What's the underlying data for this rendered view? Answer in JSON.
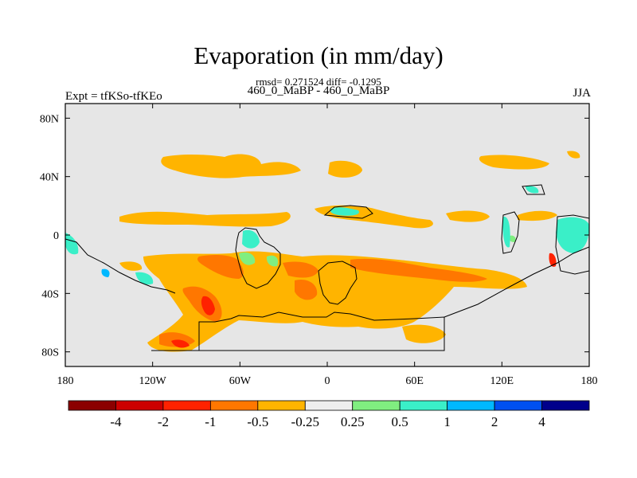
{
  "title": "Evaporation (in mm/day)",
  "stats": "rmsd= 0.271524 diff= -0.1295",
  "case": "460_0_MaBP - 460_0_MaBP",
  "experiment": "Expt = tfKSo-tfKEo",
  "season": "JJA",
  "map": {
    "lon_range": [
      -180,
      180
    ],
    "lat_range": [
      -90,
      90
    ],
    "lon_ticks": [
      {
        "value": -180,
        "label": "180"
      },
      {
        "value": -120,
        "label": "120W"
      },
      {
        "value": -60,
        "label": "60W"
      },
      {
        "value": 0,
        "label": "0"
      },
      {
        "value": 60,
        "label": "60E"
      },
      {
        "value": 120,
        "label": "120E"
      },
      {
        "value": 180,
        "label": "180"
      }
    ],
    "lat_ticks": [
      {
        "value": 80,
        "label": "80N"
      },
      {
        "value": 40,
        "label": "40N"
      },
      {
        "value": 0,
        "label": "0"
      },
      {
        "value": -40,
        "label": "40S"
      },
      {
        "value": -80,
        "label": "80S"
      }
    ],
    "background_color": "#e6e6e6"
  },
  "colorbar": {
    "colors": [
      "#8b0000",
      "#cc0000",
      "#ff2200",
      "#ff7700",
      "#ffb400",
      "#eeeeee",
      "#80ee80",
      "#3aefc8",
      "#00b8ff",
      "#0050f0",
      "#00008b"
    ],
    "labels": [
      "-4",
      "-2",
      "-1",
      "-0.5",
      "-0.25",
      "0.25",
      "0.5",
      "1",
      "2",
      "4"
    ]
  }
}
